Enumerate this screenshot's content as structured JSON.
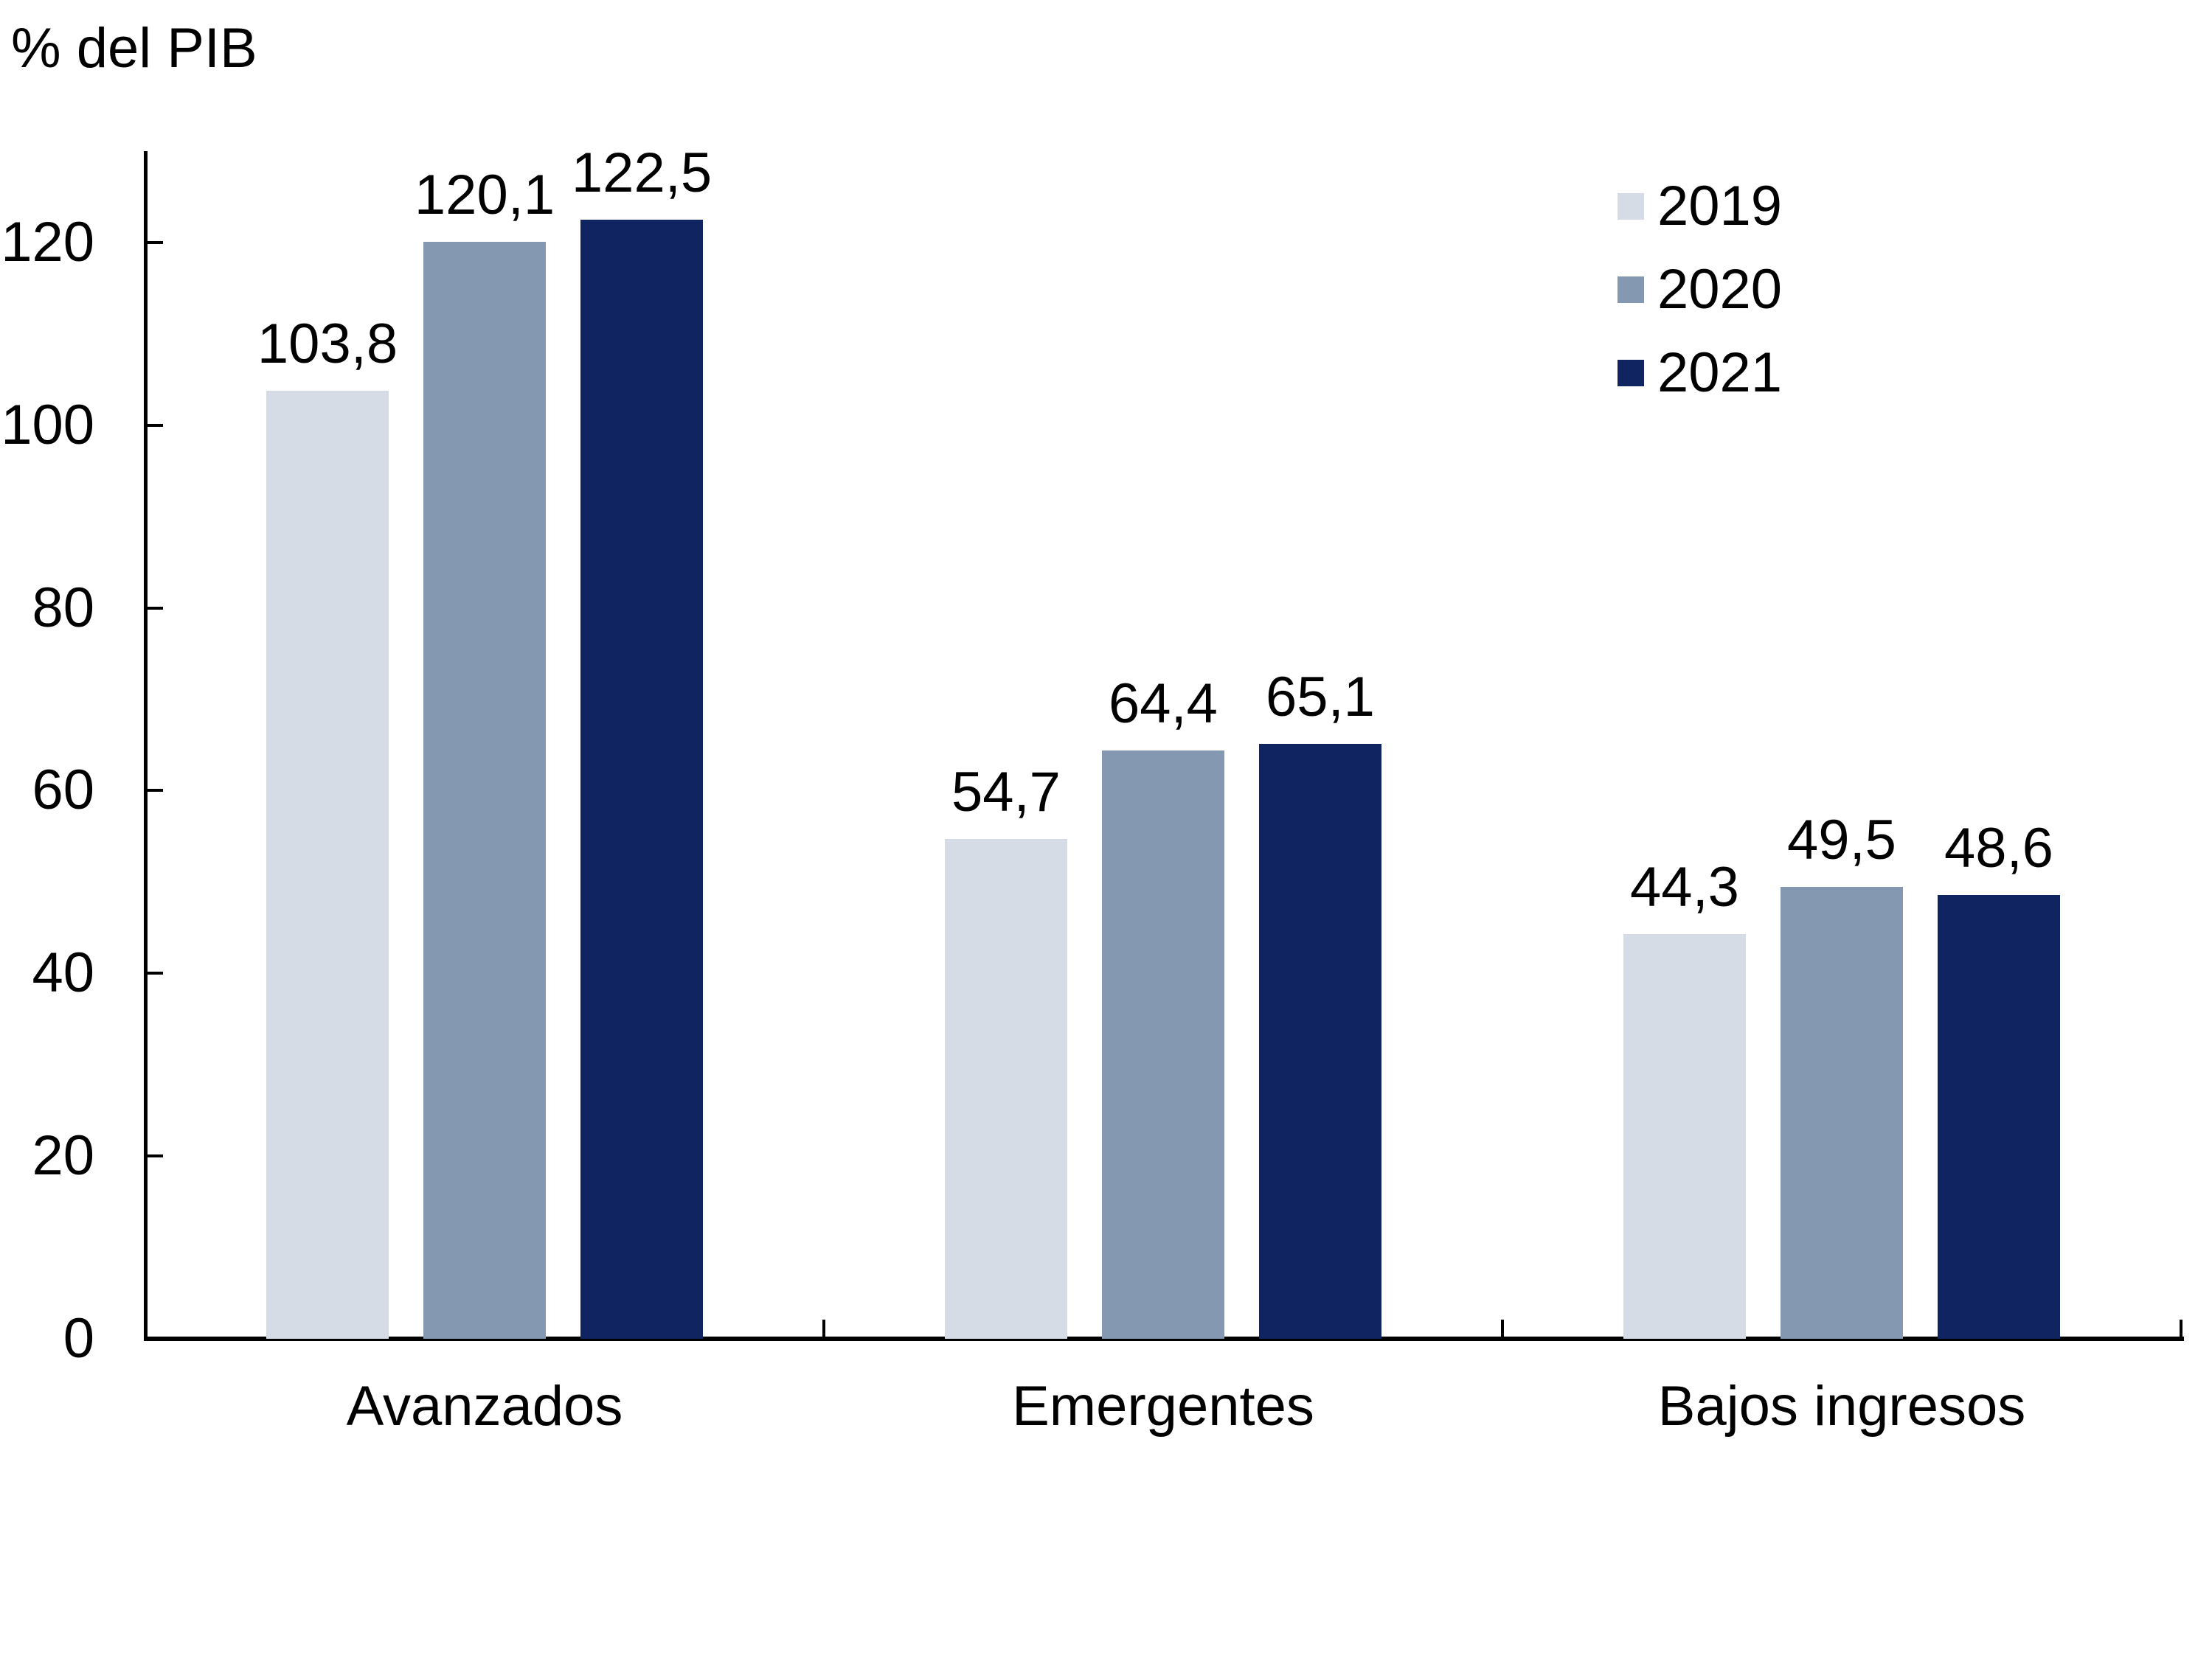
{
  "chart_data": {
    "type": "bar",
    "title": "",
    "unit_label": "% del PIB",
    "categories": [
      "Avanzados",
      "Emergentes",
      "Bajos ingresos"
    ],
    "series": [
      {
        "name": "2019",
        "color": "#D6DCE5",
        "values": [
          103.8,
          54.7,
          44.3
        ],
        "labels": [
          "103,8",
          "54,7",
          "44,3"
        ]
      },
      {
        "name": "2020",
        "color": "#8598B2",
        "values": [
          120.1,
          64.4,
          49.5
        ],
        "labels": [
          "120,1",
          "64,4",
          "49,5"
        ]
      },
      {
        "name": "2021",
        "color": "#0F2460",
        "values": [
          122.5,
          65.1,
          48.6
        ],
        "labels": [
          "122,5",
          "65,1",
          "48,6"
        ]
      }
    ],
    "y_axis": {
      "ticks": [
        0,
        20,
        40,
        60,
        80,
        100,
        120
      ],
      "ylim": [
        0,
        130
      ]
    },
    "xlabel": "",
    "ylabel": "% del PIB",
    "grid": false,
    "legend_position": "top-right",
    "colors": {
      "background": "#FFFFFF",
      "axis": "#000000",
      "text": "#000000"
    },
    "decimal_separator": ","
  }
}
